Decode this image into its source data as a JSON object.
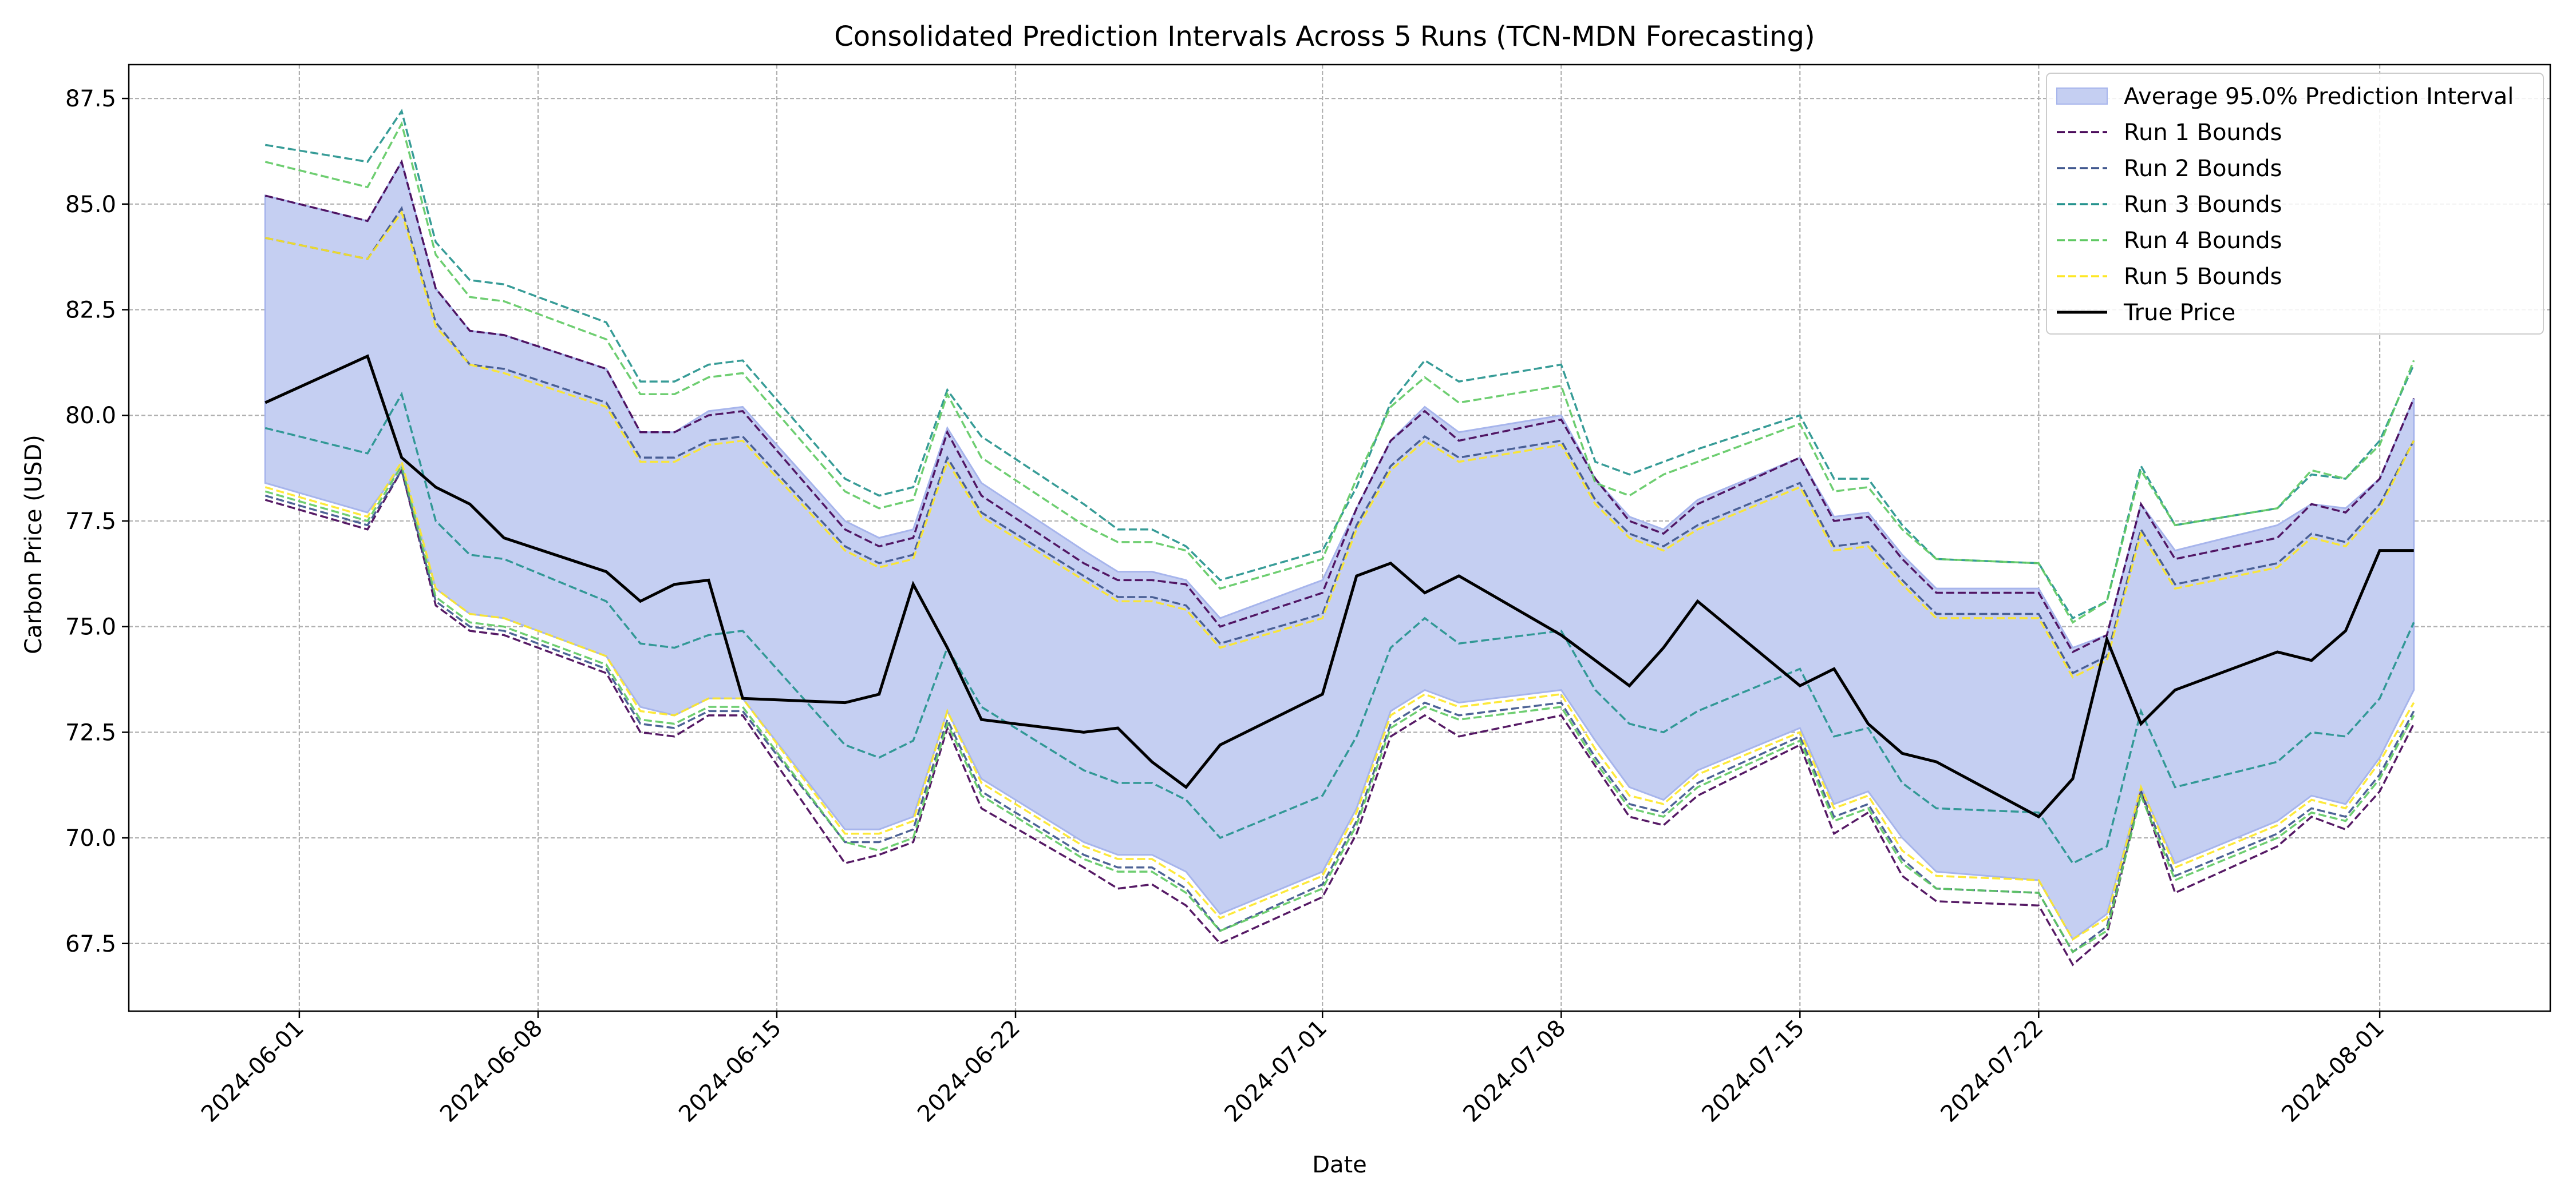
{
  "chart_data": {
    "type": "line",
    "title": "Consolidated Prediction Intervals Across 5 Runs (TCN-MDN Forecasting)",
    "xlabel": "Date",
    "ylabel": "Carbon Price (USD)",
    "xlim": [
      "2024-05-27",
      "2024-08-06"
    ],
    "ylim": [
      65.9,
      88.3
    ],
    "xticks": [
      "2024-06-01",
      "2024-06-08",
      "2024-06-15",
      "2024-06-22",
      "2024-07-01",
      "2024-07-08",
      "2024-07-15",
      "2024-07-22",
      "2024-08-01"
    ],
    "yticks": [
      "67.5",
      "70.0",
      "72.5",
      "75.0",
      "77.5",
      "80.0",
      "82.5",
      "85.0",
      "87.5"
    ],
    "grid": true,
    "legend_position": "top-right",
    "x": [
      "2024-05-31",
      "2024-06-03",
      "2024-06-04",
      "2024-06-05",
      "2024-06-06",
      "2024-06-07",
      "2024-06-10",
      "2024-06-11",
      "2024-06-12",
      "2024-06-13",
      "2024-06-14",
      "2024-06-17",
      "2024-06-18",
      "2024-06-19",
      "2024-06-20",
      "2024-06-21",
      "2024-06-24",
      "2024-06-25",
      "2024-06-26",
      "2024-06-27",
      "2024-06-28",
      "2024-07-01",
      "2024-07-02",
      "2024-07-03",
      "2024-07-04",
      "2024-07-05",
      "2024-07-08",
      "2024-07-09",
      "2024-07-10",
      "2024-07-11",
      "2024-07-12",
      "2024-07-15",
      "2024-07-16",
      "2024-07-17",
      "2024-07-18",
      "2024-07-19",
      "2024-07-22",
      "2024-07-23",
      "2024-07-24",
      "2024-07-25",
      "2024-07-26",
      "2024-07-29",
      "2024-07-30",
      "2024-07-31",
      "2024-08-01",
      "2024-08-02"
    ],
    "interval": {
      "name": "Average 95.0% Prediction Interval",
      "color": "#c5cff2",
      "edge_color": "#a7b5ec",
      "lower": [
        78.4,
        77.7,
        78.8,
        75.9,
        75.3,
        75.2,
        74.3,
        73.1,
        72.9,
        73.3,
        73.3,
        70.2,
        70.2,
        70.5,
        73.0,
        71.4,
        69.9,
        69.6,
        69.6,
        69.2,
        68.2,
        69.2,
        70.7,
        73.0,
        73.5,
        73.2,
        73.5,
        72.3,
        71.2,
        70.9,
        71.6,
        72.6,
        70.8,
        71.1,
        70.0,
        69.2,
        69.0,
        67.6,
        68.2,
        71.2,
        69.4,
        70.4,
        71.0,
        70.8,
        71.9,
        73.5
      ],
      "upper": [
        85.2,
        84.6,
        86.0,
        83.0,
        82.0,
        81.9,
        81.1,
        79.6,
        79.6,
        80.1,
        80.2,
        77.5,
        77.1,
        77.3,
        79.7,
        78.4,
        76.8,
        76.3,
        76.3,
        76.1,
        75.2,
        76.1,
        77.8,
        79.4,
        80.2,
        79.6,
        80.0,
        78.5,
        77.6,
        77.3,
        78.0,
        79.0,
        77.6,
        77.7,
        76.7,
        75.9,
        75.9,
        74.5,
        74.8,
        77.9,
        76.8,
        77.4,
        77.9,
        77.8,
        78.5,
        80.4
      ]
    },
    "series": [
      {
        "name": "Run 1 Bounds",
        "color": "#440154",
        "lower": [
          78.0,
          77.3,
          78.7,
          75.5,
          74.9,
          74.8,
          73.9,
          72.5,
          72.4,
          72.9,
          72.9,
          69.4,
          69.6,
          69.9,
          72.6,
          70.7,
          69.3,
          68.8,
          68.9,
          68.4,
          67.5,
          68.6,
          70.1,
          72.4,
          72.9,
          72.4,
          72.9,
          71.7,
          70.5,
          70.3,
          71.0,
          72.2,
          70.1,
          70.6,
          69.1,
          68.5,
          68.4,
          67.0,
          67.7,
          71.1,
          68.7,
          69.8,
          70.5,
          70.2,
          71.1,
          72.7
        ],
        "upper": [
          85.2,
          84.6,
          86.0,
          83.0,
          82.0,
          81.9,
          81.1,
          79.6,
          79.6,
          80.0,
          80.1,
          77.3,
          76.9,
          77.1,
          79.6,
          78.1,
          76.5,
          76.1,
          76.1,
          76.0,
          75.0,
          75.8,
          77.8,
          79.4,
          80.1,
          79.4,
          79.9,
          78.5,
          77.5,
          77.2,
          77.9,
          79.0,
          77.5,
          77.6,
          76.6,
          75.8,
          75.8,
          74.4,
          74.8,
          77.9,
          76.6,
          77.1,
          77.9,
          77.7,
          78.5,
          80.4
        ]
      },
      {
        "name": "Run 2 Bounds",
        "color": "#3b528b",
        "lower": [
          78.1,
          77.4,
          78.7,
          75.6,
          75.0,
          74.9,
          74.0,
          72.7,
          72.6,
          73.0,
          73.0,
          69.9,
          69.9,
          70.2,
          72.8,
          71.1,
          69.6,
          69.3,
          69.3,
          68.8,
          67.8,
          68.9,
          70.4,
          72.7,
          73.2,
          72.9,
          73.2,
          71.9,
          70.8,
          70.6,
          71.3,
          72.4,
          70.5,
          70.8,
          69.5,
          68.8,
          68.7,
          67.3,
          67.9,
          71.1,
          69.1,
          70.1,
          70.7,
          70.5,
          71.5,
          73.0
        ],
        "upper": [
          84.2,
          83.7,
          84.9,
          82.2,
          81.2,
          81.1,
          80.3,
          79.0,
          79.0,
          79.4,
          79.5,
          76.9,
          76.5,
          76.7,
          79.0,
          77.7,
          76.2,
          75.7,
          75.7,
          75.5,
          74.6,
          75.3,
          77.4,
          78.8,
          79.5,
          79.0,
          79.4,
          78.0,
          77.2,
          76.9,
          77.4,
          78.4,
          76.9,
          77.0,
          76.1,
          75.3,
          75.3,
          73.9,
          74.3,
          77.3,
          76.0,
          76.5,
          77.2,
          77.0,
          77.9,
          79.4
        ]
      },
      {
        "name": "Run 3 Bounds",
        "color": "#21918c",
        "lower": [
          79.7,
          79.1,
          80.5,
          77.5,
          76.7,
          76.6,
          75.6,
          74.6,
          74.5,
          74.8,
          74.9,
          72.2,
          71.9,
          72.3,
          74.5,
          73.1,
          71.6,
          71.3,
          71.3,
          70.9,
          70.0,
          71.0,
          72.4,
          74.5,
          75.2,
          74.6,
          74.9,
          73.5,
          72.7,
          72.5,
          73.0,
          74.0,
          72.4,
          72.6,
          71.3,
          70.7,
          70.6,
          69.4,
          69.8,
          73.0,
          71.2,
          71.8,
          72.5,
          72.4,
          73.3,
          75.1
        ],
        "upper": [
          86.4,
          86.0,
          87.2,
          84.1,
          83.2,
          83.1,
          82.2,
          80.8,
          80.8,
          81.2,
          81.3,
          78.5,
          78.1,
          78.3,
          80.6,
          79.5,
          77.9,
          77.3,
          77.3,
          76.9,
          76.1,
          76.8,
          78.3,
          80.3,
          81.3,
          80.8,
          81.2,
          78.9,
          78.6,
          78.9,
          79.2,
          80.0,
          78.5,
          78.5,
          77.4,
          76.6,
          76.5,
          75.2,
          75.6,
          78.8,
          77.4,
          77.8,
          78.6,
          78.5,
          79.4,
          81.2
        ]
      },
      {
        "name": "Run 4 Bounds",
        "color": "#5ec962",
        "lower": [
          78.2,
          77.5,
          78.8,
          75.7,
          75.1,
          75.0,
          74.1,
          72.8,
          72.7,
          73.1,
          73.1,
          69.9,
          69.7,
          70.0,
          72.7,
          71.0,
          69.5,
          69.2,
          69.2,
          68.7,
          67.8,
          68.8,
          70.3,
          72.6,
          73.1,
          72.8,
          73.1,
          71.8,
          70.7,
          70.5,
          71.2,
          72.3,
          70.4,
          70.7,
          69.4,
          68.8,
          68.7,
          67.3,
          67.8,
          71.0,
          69.0,
          70.0,
          70.6,
          70.4,
          71.4,
          72.9
        ],
        "upper": [
          86.0,
          85.4,
          86.9,
          83.8,
          82.8,
          82.7,
          81.8,
          80.5,
          80.5,
          80.9,
          81.0,
          78.2,
          77.8,
          78.0,
          80.5,
          79.0,
          77.4,
          77.0,
          77.0,
          76.8,
          75.9,
          76.6,
          78.5,
          80.2,
          80.9,
          80.3,
          80.7,
          78.4,
          78.1,
          78.6,
          78.9,
          79.8,
          78.2,
          78.3,
          77.3,
          76.6,
          76.5,
          75.1,
          75.6,
          78.7,
          77.4,
          77.8,
          78.7,
          78.5,
          79.3,
          81.3
        ]
      },
      {
        "name": "Run 5 Bounds",
        "color": "#fde725",
        "lower": [
          78.3,
          77.6,
          78.9,
          75.9,
          75.3,
          75.2,
          74.3,
          73.0,
          72.9,
          73.3,
          73.3,
          70.1,
          70.1,
          70.4,
          73.0,
          71.3,
          69.8,
          69.5,
          69.5,
          69.0,
          68.1,
          69.1,
          70.6,
          72.9,
          73.4,
          73.1,
          73.4,
          72.1,
          71.0,
          70.8,
          71.5,
          72.5,
          70.7,
          71.0,
          69.7,
          69.1,
          69.0,
          67.6,
          68.1,
          71.2,
          69.3,
          70.3,
          70.9,
          70.7,
          71.8,
          73.2
        ],
        "upper": [
          84.2,
          83.7,
          84.8,
          82.1,
          81.2,
          81.0,
          80.2,
          78.9,
          78.9,
          79.3,
          79.4,
          76.8,
          76.4,
          76.6,
          78.9,
          77.6,
          76.1,
          75.6,
          75.6,
          75.4,
          74.5,
          75.2,
          77.3,
          78.7,
          79.4,
          78.9,
          79.3,
          77.9,
          77.1,
          76.8,
          77.3,
          78.3,
          76.8,
          76.9,
          76.0,
          75.2,
          75.2,
          73.8,
          74.2,
          77.2,
          75.9,
          76.4,
          77.1,
          76.9,
          77.8,
          79.4
        ]
      }
    ],
    "true_price": {
      "name": "True Price",
      "color": "#000000",
      "values": [
        80.3,
        81.4,
        79.0,
        78.3,
        77.9,
        77.1,
        76.3,
        75.6,
        76.0,
        76.1,
        73.3,
        73.2,
        73.4,
        76.0,
        74.5,
        72.8,
        72.5,
        72.6,
        71.8,
        71.2,
        72.2,
        73.4,
        76.2,
        76.5,
        75.8,
        76.2,
        74.8,
        74.2,
        73.6,
        74.5,
        75.6,
        73.6,
        74.0,
        72.7,
        72.0,
        71.8,
        70.5,
        71.4,
        74.7,
        72.7,
        73.5,
        74.4,
        74.2,
        74.9,
        76.8,
        76.8
      ]
    }
  }
}
